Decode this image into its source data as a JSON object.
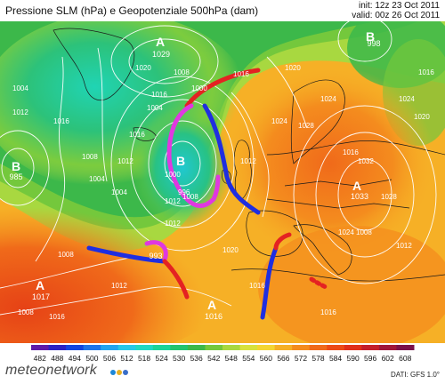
{
  "header": {
    "title": "Pressione SLM (hPa) e Geopotenziale 500hPa (dam)",
    "init": "init: 12z 23 Oct 2011",
    "valid": "valid: 00z 26 Oct 2011"
  },
  "pressure_labels": {
    "a1_text": "A",
    "a1_val": "1029",
    "b1_text": "B",
    "b1_val": "998",
    "b2_text": "B",
    "b2_val": "985",
    "b3_text": "B",
    "b3_val": "",
    "a2_text": "A",
    "a2_val": "1033",
    "a3_text": "A",
    "a3_val": "1017",
    "a4_text": "A",
    "a4_val": "1016",
    "b4_text": "B",
    "b4_val": "993"
  },
  "isobar_labels": [
    "1020",
    "1004",
    "1012",
    "1016",
    "1008",
    "1016",
    "1004",
    "1000",
    "1016",
    "1020",
    "1024",
    "1004",
    "1008",
    "1012",
    "1016",
    "1012",
    "1008",
    "996",
    "1000",
    "1004",
    "1012",
    "1024",
    "1028",
    "1032",
    "1028",
    "1024",
    "1020",
    "1016",
    "1012",
    "1008",
    "1016",
    "1024",
    "1008",
    "1012",
    "1016",
    "1020",
    "1016",
    "1008",
    "1012",
    "1016"
  ],
  "legend": {
    "values": [
      "482",
      "488",
      "494",
      "500",
      "506",
      "512",
      "518",
      "524",
      "530",
      "536",
      "542",
      "548",
      "554",
      "560",
      "566",
      "572",
      "578",
      "584",
      "590",
      "596",
      "602",
      "608"
    ],
    "colors": [
      "#5e1aa8",
      "#2a22c4",
      "#1244e0",
      "#1c74ea",
      "#22a4ee",
      "#26c8e8",
      "#20d8c4",
      "#1ad49a",
      "#22c46e",
      "#3cb84a",
      "#74c83c",
      "#a8d840",
      "#d8e23c",
      "#f4d632",
      "#f6b026",
      "#f48c1e",
      "#f06a1a",
      "#ec4a16",
      "#e02e1a",
      "#c41e2a",
      "#a0163a",
      "#7a104a"
    ]
  },
  "footer": {
    "dati": "DATI: GFS 1.0°",
    "brand": "meteonetwork",
    "dot_colors": [
      "#1e88d8",
      "#e8b020",
      "#3a6ec8"
    ]
  }
}
